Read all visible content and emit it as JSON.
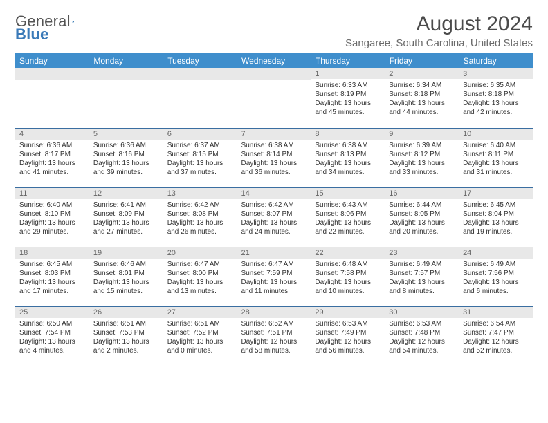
{
  "logo": {
    "text1": "General",
    "text2": "Blue"
  },
  "title": "August 2024",
  "location": "Sangaree, South Carolina, United States",
  "colors": {
    "header_bg": "#3f8ecc",
    "header_text": "#ffffff",
    "daynum_bg": "#e8e8e8",
    "rule": "#3a6ea1",
    "body_text": "#333333",
    "title_text": "#4b4b4b",
    "location_text": "#6a6a6a"
  },
  "weekdays": [
    "Sunday",
    "Monday",
    "Tuesday",
    "Wednesday",
    "Thursday",
    "Friday",
    "Saturday"
  ],
  "weeks": [
    [
      null,
      null,
      null,
      null,
      {
        "n": "1",
        "sr": "Sunrise: 6:33 AM",
        "ss": "Sunset: 8:19 PM",
        "dl": "Daylight: 13 hours and 45 minutes."
      },
      {
        "n": "2",
        "sr": "Sunrise: 6:34 AM",
        "ss": "Sunset: 8:18 PM",
        "dl": "Daylight: 13 hours and 44 minutes."
      },
      {
        "n": "3",
        "sr": "Sunrise: 6:35 AM",
        "ss": "Sunset: 8:18 PM",
        "dl": "Daylight: 13 hours and 42 minutes."
      }
    ],
    [
      {
        "n": "4",
        "sr": "Sunrise: 6:36 AM",
        "ss": "Sunset: 8:17 PM",
        "dl": "Daylight: 13 hours and 41 minutes."
      },
      {
        "n": "5",
        "sr": "Sunrise: 6:36 AM",
        "ss": "Sunset: 8:16 PM",
        "dl": "Daylight: 13 hours and 39 minutes."
      },
      {
        "n": "6",
        "sr": "Sunrise: 6:37 AM",
        "ss": "Sunset: 8:15 PM",
        "dl": "Daylight: 13 hours and 37 minutes."
      },
      {
        "n": "7",
        "sr": "Sunrise: 6:38 AM",
        "ss": "Sunset: 8:14 PM",
        "dl": "Daylight: 13 hours and 36 minutes."
      },
      {
        "n": "8",
        "sr": "Sunrise: 6:38 AM",
        "ss": "Sunset: 8:13 PM",
        "dl": "Daylight: 13 hours and 34 minutes."
      },
      {
        "n": "9",
        "sr": "Sunrise: 6:39 AM",
        "ss": "Sunset: 8:12 PM",
        "dl": "Daylight: 13 hours and 33 minutes."
      },
      {
        "n": "10",
        "sr": "Sunrise: 6:40 AM",
        "ss": "Sunset: 8:11 PM",
        "dl": "Daylight: 13 hours and 31 minutes."
      }
    ],
    [
      {
        "n": "11",
        "sr": "Sunrise: 6:40 AM",
        "ss": "Sunset: 8:10 PM",
        "dl": "Daylight: 13 hours and 29 minutes."
      },
      {
        "n": "12",
        "sr": "Sunrise: 6:41 AM",
        "ss": "Sunset: 8:09 PM",
        "dl": "Daylight: 13 hours and 27 minutes."
      },
      {
        "n": "13",
        "sr": "Sunrise: 6:42 AM",
        "ss": "Sunset: 8:08 PM",
        "dl": "Daylight: 13 hours and 26 minutes."
      },
      {
        "n": "14",
        "sr": "Sunrise: 6:42 AM",
        "ss": "Sunset: 8:07 PM",
        "dl": "Daylight: 13 hours and 24 minutes."
      },
      {
        "n": "15",
        "sr": "Sunrise: 6:43 AM",
        "ss": "Sunset: 8:06 PM",
        "dl": "Daylight: 13 hours and 22 minutes."
      },
      {
        "n": "16",
        "sr": "Sunrise: 6:44 AM",
        "ss": "Sunset: 8:05 PM",
        "dl": "Daylight: 13 hours and 20 minutes."
      },
      {
        "n": "17",
        "sr": "Sunrise: 6:45 AM",
        "ss": "Sunset: 8:04 PM",
        "dl": "Daylight: 13 hours and 19 minutes."
      }
    ],
    [
      {
        "n": "18",
        "sr": "Sunrise: 6:45 AM",
        "ss": "Sunset: 8:03 PM",
        "dl": "Daylight: 13 hours and 17 minutes."
      },
      {
        "n": "19",
        "sr": "Sunrise: 6:46 AM",
        "ss": "Sunset: 8:01 PM",
        "dl": "Daylight: 13 hours and 15 minutes."
      },
      {
        "n": "20",
        "sr": "Sunrise: 6:47 AM",
        "ss": "Sunset: 8:00 PM",
        "dl": "Daylight: 13 hours and 13 minutes."
      },
      {
        "n": "21",
        "sr": "Sunrise: 6:47 AM",
        "ss": "Sunset: 7:59 PM",
        "dl": "Daylight: 13 hours and 11 minutes."
      },
      {
        "n": "22",
        "sr": "Sunrise: 6:48 AM",
        "ss": "Sunset: 7:58 PM",
        "dl": "Daylight: 13 hours and 10 minutes."
      },
      {
        "n": "23",
        "sr": "Sunrise: 6:49 AM",
        "ss": "Sunset: 7:57 PM",
        "dl": "Daylight: 13 hours and 8 minutes."
      },
      {
        "n": "24",
        "sr": "Sunrise: 6:49 AM",
        "ss": "Sunset: 7:56 PM",
        "dl": "Daylight: 13 hours and 6 minutes."
      }
    ],
    [
      {
        "n": "25",
        "sr": "Sunrise: 6:50 AM",
        "ss": "Sunset: 7:54 PM",
        "dl": "Daylight: 13 hours and 4 minutes."
      },
      {
        "n": "26",
        "sr": "Sunrise: 6:51 AM",
        "ss": "Sunset: 7:53 PM",
        "dl": "Daylight: 13 hours and 2 minutes."
      },
      {
        "n": "27",
        "sr": "Sunrise: 6:51 AM",
        "ss": "Sunset: 7:52 PM",
        "dl": "Daylight: 13 hours and 0 minutes."
      },
      {
        "n": "28",
        "sr": "Sunrise: 6:52 AM",
        "ss": "Sunset: 7:51 PM",
        "dl": "Daylight: 12 hours and 58 minutes."
      },
      {
        "n": "29",
        "sr": "Sunrise: 6:53 AM",
        "ss": "Sunset: 7:49 PM",
        "dl": "Daylight: 12 hours and 56 minutes."
      },
      {
        "n": "30",
        "sr": "Sunrise: 6:53 AM",
        "ss": "Sunset: 7:48 PM",
        "dl": "Daylight: 12 hours and 54 minutes."
      },
      {
        "n": "31",
        "sr": "Sunrise: 6:54 AM",
        "ss": "Sunset: 7:47 PM",
        "dl": "Daylight: 12 hours and 52 minutes."
      }
    ]
  ]
}
